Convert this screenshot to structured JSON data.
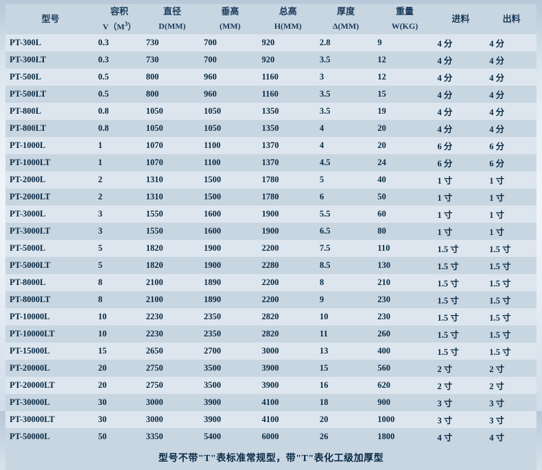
{
  "columns": {
    "model": {
      "h1": "型号",
      "h2": ""
    },
    "volume": {
      "h1": "容积",
      "h2_pre": "V（M",
      "h2_sup": "3",
      "h2_post": "）"
    },
    "diameter": {
      "h1": "直径",
      "h2": "D(MM)"
    },
    "vheight": {
      "h1": "垂高",
      "h2": "(MM)"
    },
    "theight": {
      "h1": "总高",
      "h2": "H(MM)"
    },
    "thickness": {
      "h1": "厚度",
      "h2": "Δ(MM)"
    },
    "weight": {
      "h1": "重量",
      "h2": "W(KG)"
    },
    "inlet": {
      "h1": "进料",
      "h2": ""
    },
    "outlet": {
      "h1": "出料",
      "h2": ""
    }
  },
  "rows": [
    {
      "model": "PT-300L",
      "v": "0.3",
      "d": "730",
      "hv": "700",
      "ht": "920",
      "t": "2.8",
      "w": "9",
      "in": "4 分",
      "out": "4 分"
    },
    {
      "model": "PT-300LT",
      "v": "0.3",
      "d": "730",
      "hv": "700",
      "ht": "920",
      "t": "3.5",
      "w": "12",
      "in": "4 分",
      "out": "4 分"
    },
    {
      "model": "PT-500L",
      "v": "0.5",
      "d": "800",
      "hv": "960",
      "ht": "1160",
      "t": "3",
      "w": "12",
      "in": "4 分",
      "out": "4 分"
    },
    {
      "model": "PT-500LT",
      "v": "0.5",
      "d": "800",
      "hv": "960",
      "ht": "1160",
      "t": "3.5",
      "w": "15",
      "in": "4 分",
      "out": "4 分"
    },
    {
      "model": "PT-800L",
      "v": "0.8",
      "d": "1050",
      "hv": "1050",
      "ht": "1350",
      "t": "3.5",
      "w": "19",
      "in": "4 分",
      "out": "4 分"
    },
    {
      "model": "PT-800LT",
      "v": "0.8",
      "d": "1050",
      "hv": "1050",
      "ht": "1350",
      "t": "4",
      "w": "20",
      "in": "4 分",
      "out": "4 分"
    },
    {
      "model": "PT-1000L",
      "v": "1",
      "d": "1070",
      "hv": "1100",
      "ht": "1370",
      "t": "4",
      "w": "20",
      "in": "6 分",
      "out": "6 分"
    },
    {
      "model": "PT-1000LT",
      "v": "1",
      "d": "1070",
      "hv": "1100",
      "ht": "1370",
      "t": "4.5",
      "w": "24",
      "in": "6 分",
      "out": "6 分"
    },
    {
      "model": "PT-2000L",
      "v": "2",
      "d": "1310",
      "hv": "1500",
      "ht": "1780",
      "t": "5",
      "w": "40",
      "in": "1 寸",
      "out": "1 寸"
    },
    {
      "model": "PT-2000LT",
      "v": "2",
      "d": "1310",
      "hv": "1500",
      "ht": "1780",
      "t": "6",
      "w": "50",
      "in": "1 寸",
      "out": "1 寸"
    },
    {
      "model": "PT-3000L",
      "v": "3",
      "d": "1550",
      "hv": "1600",
      "ht": "1900",
      "t": "5.5",
      "w": "60",
      "in": "1 寸",
      "out": "1 寸"
    },
    {
      "model": "PT-3000LT",
      "v": "3",
      "d": "1550",
      "hv": "1600",
      "ht": "1900",
      "t": "6.5",
      "w": "80",
      "in": "1 寸",
      "out": "1 寸"
    },
    {
      "model": "PT-5000L",
      "v": "5",
      "d": "1820",
      "hv": "1900",
      "ht": "2200",
      "t": "7.5",
      "w": "110",
      "in": "1.5 寸",
      "out": "1.5 寸"
    },
    {
      "model": "PT-5000LT",
      "v": "5",
      "d": "1820",
      "hv": "1900",
      "ht": "2280",
      "t": "8.5",
      "w": "130",
      "in": "1.5 寸",
      "out": "1.5 寸"
    },
    {
      "model": "PT-8000L",
      "v": "8",
      "d": "2100",
      "hv": "1890",
      "ht": "2200",
      "t": "8",
      "w": "210",
      "in": "1.5 寸",
      "out": "1.5 寸"
    },
    {
      "model": "PT-8000LT",
      "v": "8",
      "d": "2100",
      "hv": "1890",
      "ht": "2200",
      "t": "9",
      "w": "230",
      "in": "1.5 寸",
      "out": "1.5 寸"
    },
    {
      "model": "PT-10000L",
      "v": "10",
      "d": "2230",
      "hv": "2350",
      "ht": "2820",
      "t": "10",
      "w": "230",
      "in": "1.5 寸",
      "out": "1.5 寸"
    },
    {
      "model": "PT-10000LT",
      "v": "10",
      "d": "2230",
      "hv": "2350",
      "ht": "2820",
      "t": "11",
      "w": "260",
      "in": "1.5 寸",
      "out": "1.5 寸"
    },
    {
      "model": "PT-15000L",
      "v": "15",
      "d": "2650",
      "hv": "2700",
      "ht": "3000",
      "t": "13",
      "w": "400",
      "in": "1.5 寸",
      "out": "1.5 寸"
    },
    {
      "model": "PT-20000L",
      "v": "20",
      "d": "2750",
      "hv": "3500",
      "ht": "3900",
      "t": "15",
      "w": "560",
      "in": "2 寸",
      "out": "2 寸"
    },
    {
      "model": "PT-20000LT",
      "v": "20",
      "d": "2750",
      "hv": "3500",
      "ht": "3900",
      "t": "16",
      "w": "620",
      "in": "2 寸",
      "out": "2 寸"
    },
    {
      "model": "PT-30000L",
      "v": "30",
      "d": "3000",
      "hv": "3900",
      "ht": "4100",
      "t": "18",
      "w": "900",
      "in": "3 寸",
      "out": "3 寸"
    },
    {
      "model": "PT-30000LT",
      "v": "30",
      "d": "3000",
      "hv": "3900",
      "ht": "4100",
      "t": "20",
      "w": "1000",
      "in": "3 寸",
      "out": "3 寸"
    },
    {
      "model": "PT-50000L",
      "v": "50",
      "d": "3350",
      "hv": "5400",
      "ht": "6000",
      "t": "26",
      "w": "1800",
      "in": "4 寸",
      "out": "4 寸"
    }
  ],
  "footer": "型号不带\"T\"表标准常规型，带\"T\"表化工级加厚型",
  "style": {
    "header_bg": "#c8d6e2",
    "row_odd_bg": "#dde6ee",
    "row_even_bg": "#c8d6e2",
    "text_color": "#0a2a44",
    "header_text_color": "#1a3a5a",
    "body_font_size": 12.5,
    "header_font_size": 13,
    "footer_font_size": 14
  }
}
